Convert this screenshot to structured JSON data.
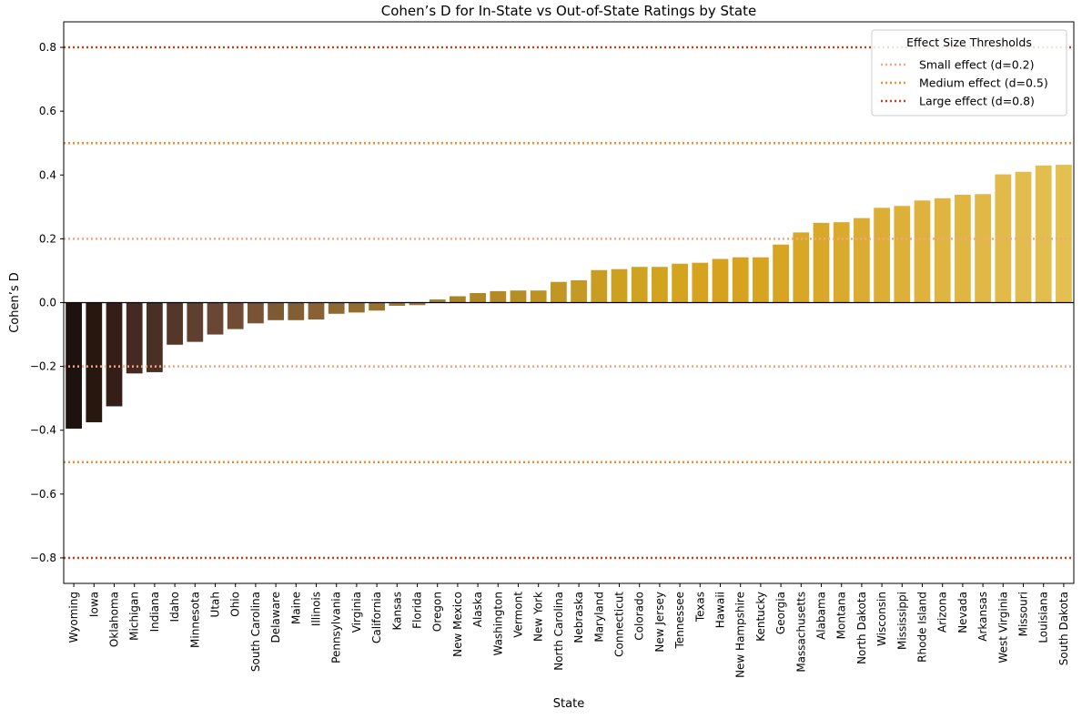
{
  "chart_data": {
    "type": "bar",
    "title": "Cohen’s D for In-State vs Out-of-State Ratings by State",
    "xlabel": "State",
    "ylabel": "Cohen’s D",
    "ylim": [
      -0.88,
      0.88
    ],
    "yticks": [
      -0.8,
      -0.6,
      -0.4,
      -0.2,
      0.0,
      0.2,
      0.4,
      0.6,
      0.8
    ],
    "ytick_labels": [
      "−0.8",
      "−0.6",
      "−0.4",
      "−0.2",
      "0.0",
      "0.2",
      "0.4",
      "0.6",
      "0.8"
    ],
    "categories": [
      "Wyoming",
      "Iowa",
      "Oklahoma",
      "Michigan",
      "Indiana",
      "Idaho",
      "Minnesota",
      "Utah",
      "Ohio",
      "South Carolina",
      "Delaware",
      "Maine",
      "Illinois",
      "Pennsylvania",
      "Virginia",
      "California",
      "Kansas",
      "Florida",
      "Oregon",
      "New Mexico",
      "Alaska",
      "Washington",
      "Vermont",
      "New York",
      "North Carolina",
      "Nebraska",
      "Maryland",
      "Connecticut",
      "Colorado",
      "New Jersey",
      "Tennessee",
      "Texas",
      "Hawaii",
      "New Hampshire",
      "Kentucky",
      "Georgia",
      "Massachusetts",
      "Alabama",
      "Montana",
      "North Dakota",
      "Wisconsin",
      "Mississippi",
      "Rhode Island",
      "Arizona",
      "Nevada",
      "Arkansas",
      "West Virginia",
      "Missouri",
      "Louisiana",
      "South Dakota"
    ],
    "values": [
      -0.395,
      -0.375,
      -0.325,
      -0.222,
      -0.218,
      -0.132,
      -0.123,
      -0.1,
      -0.083,
      -0.065,
      -0.055,
      -0.055,
      -0.053,
      -0.035,
      -0.031,
      -0.025,
      -0.01,
      -0.008,
      0.01,
      0.02,
      0.03,
      0.036,
      0.038,
      0.038,
      0.065,
      0.07,
      0.102,
      0.105,
      0.112,
      0.112,
      0.122,
      0.125,
      0.137,
      0.142,
      0.142,
      0.182,
      0.22,
      0.25,
      0.252,
      0.265,
      0.297,
      0.303,
      0.32,
      0.327,
      0.338,
      0.34,
      0.402,
      0.41,
      0.43,
      0.432
    ],
    "bar_colors": [
      "#1e120e",
      "#27170f",
      "#341e16",
      "#442a22",
      "#4a2f24",
      "#553729",
      "#5f3f30",
      "#6a4634",
      "#714c35",
      "#785434",
      "#7e5a33",
      "#835e33",
      "#886232",
      "#8e6931",
      "#936d30",
      "#98712e",
      "#9e762d",
      "#a27a2c",
      "#a77f2a",
      "#ab8228",
      "#b08726",
      "#b48a25",
      "#b88d24",
      "#bc9223",
      "#c19622",
      "#c59a22",
      "#c99d21",
      "#cda020",
      "#cfa21f",
      "#d2a41e",
      "#d4a41e",
      "#d5a31d",
      "#d6a11c",
      "#d7a21d",
      "#d7a41f",
      "#d8a522",
      "#d8a726",
      "#d9a829",
      "#daaa2d",
      "#dbac31",
      "#dcae35",
      "#ddb039",
      "#deb23c",
      "#dfb43f",
      "#e0b643",
      "#e1b846",
      "#e1ba49",
      "#e2bc4c",
      "#e2be4e",
      "#e3c050"
    ],
    "thresholds": [
      {
        "name": "Small effect (d=0.2)",
        "value": 0.2,
        "color": "#f4a582"
      },
      {
        "name": "Medium effect (d=0.5)",
        "value": 0.5,
        "color": "#f28e2b"
      },
      {
        "name": "Large effect (d=0.8)",
        "value": 0.8,
        "color": "#cc3e10"
      }
    ],
    "grid": false,
    "legend": {
      "title": "Effect Size Thresholds",
      "placement": "top-right"
    }
  }
}
